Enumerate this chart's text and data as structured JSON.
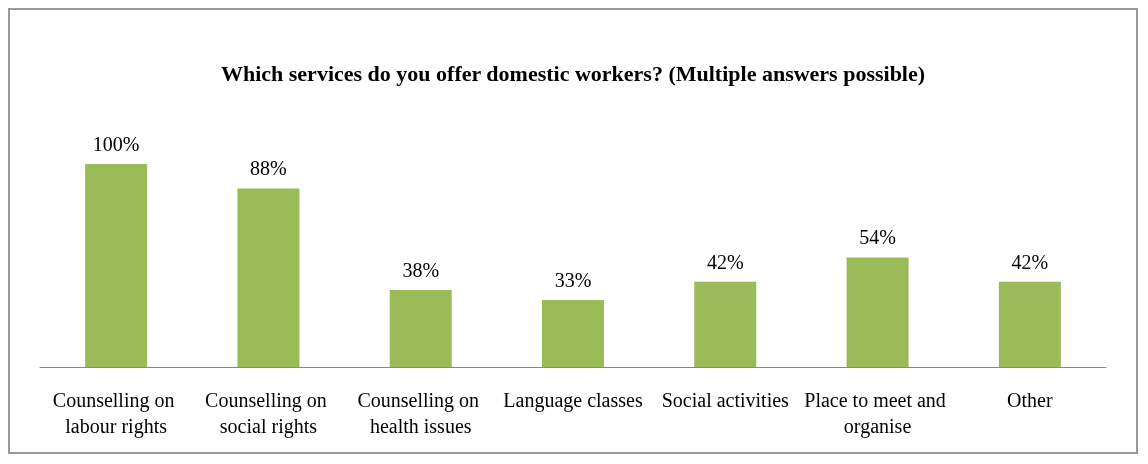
{
  "chart_data": {
    "type": "bar",
    "title": "Which services do you offer domestic workers? (Multiple answers possible)",
    "categories": [
      "Counselling on labour rights",
      "Counselling on social rights",
      "Counselling on health issues",
      "Language classes",
      "Social activities",
      "Place to meet and organise",
      "Other"
    ],
    "values": [
      100,
      88,
      38,
      33,
      42,
      54,
      42
    ],
    "value_labels": [
      "100%",
      "88%",
      "38%",
      "33%",
      "42%",
      "54%",
      "42%"
    ],
    "color": "#9bbb59"
  }
}
